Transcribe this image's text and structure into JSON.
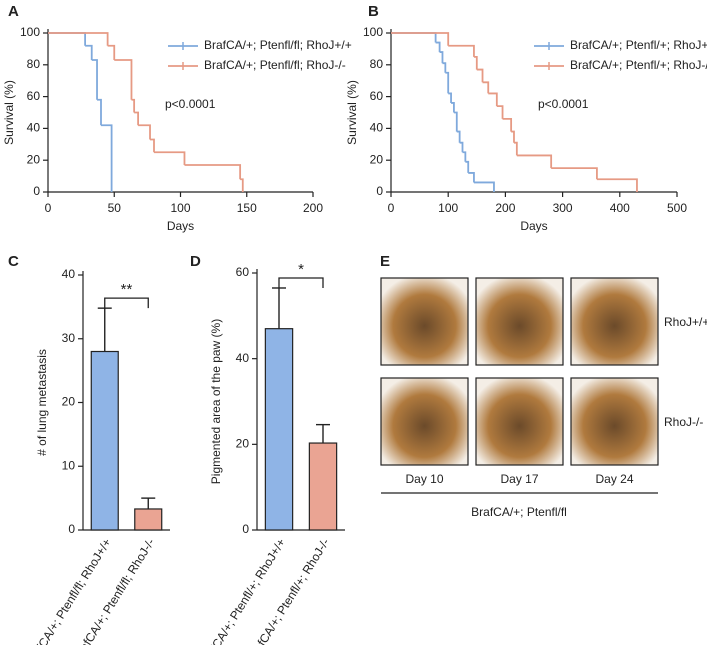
{
  "chart_data": [
    {
      "type": "line",
      "step": true,
      "panel": "A",
      "x_label": "Days",
      "y_label": "Survival (%)",
      "xlim": [
        0,
        200
      ],
      "xticks": [
        0,
        50,
        100,
        150,
        200
      ],
      "ylim": [
        0,
        100
      ],
      "yticks": [
        0,
        20,
        40,
        60,
        80,
        100
      ],
      "legend": "upper right",
      "annotation": "p<0.0001",
      "series": [
        {
          "name": "BrafCA/+; Ptenfl/fl; RhoJ+/+",
          "color": "#7fa9dc",
          "x": [
            0,
            28,
            33,
            37,
            40,
            48
          ],
          "values": [
            100,
            92,
            83,
            58,
            42,
            0
          ]
        },
        {
          "name": "BrafCA/+; Ptenfl/fl; RhoJ-/-",
          "color": "#e69a84",
          "x": [
            0,
            45,
            50,
            63,
            65,
            68,
            77,
            80,
            103,
            145,
            147
          ],
          "values": [
            100,
            92,
            83,
            58,
            50,
            42,
            33,
            25,
            17,
            8,
            0
          ]
        }
      ]
    },
    {
      "type": "line",
      "step": true,
      "panel": "B",
      "x_label": "Days",
      "y_label": "Survival (%)",
      "xlim": [
        0,
        500
      ],
      "xticks": [
        0,
        100,
        200,
        300,
        400,
        500
      ],
      "ylim": [
        0,
        100
      ],
      "yticks": [
        0,
        20,
        40,
        60,
        80,
        100
      ],
      "legend": "upper right",
      "annotation": "p<0.0001",
      "series": [
        {
          "name": "BrafCA/+; Ptenfl/+; RhoJ+/+",
          "color": "#7fa9dc",
          "x": [
            0,
            78,
            85,
            90,
            95,
            100,
            105,
            110,
            115,
            120,
            125,
            130,
            135,
            145,
            180
          ],
          "values": [
            100,
            94,
            88,
            81,
            75,
            62,
            56,
            50,
            38,
            31,
            25,
            19,
            12,
            6,
            0
          ]
        },
        {
          "name": "BrafCA/+; Ptenfl/+; RhoJ-/-",
          "color": "#e69a84",
          "x": [
            0,
            100,
            145,
            150,
            160,
            170,
            185,
            195,
            210,
            215,
            220,
            280,
            360,
            430
          ],
          "values": [
            100,
            92,
            85,
            77,
            69,
            62,
            54,
            46,
            38,
            31,
            23,
            15,
            8,
            0
          ]
        }
      ]
    },
    {
      "type": "bar",
      "panel": "C",
      "y_label": "# of lung metastasis",
      "ylim": [
        0,
        40
      ],
      "yticks": [
        0,
        10,
        20,
        30,
        40
      ],
      "categories": [
        "BrafCA/+; Ptenfl/fl; RhoJ+/+",
        "BrafCA/+; Ptenfl/fl; RhoJ-/-"
      ],
      "values": [
        28,
        3.3
      ],
      "errors": [
        6.8,
        1.7
      ],
      "colors": [
        "#8fb4e6",
        "#eaa493"
      ],
      "annotation": "**"
    },
    {
      "type": "bar",
      "panel": "D",
      "y_label": "Pigmented area of the paw (%)",
      "ylim": [
        0,
        60
      ],
      "yticks": [
        0,
        20,
        40,
        60
      ],
      "categories": [
        "BrafCA/+; Ptenfl/+; RhoJ+/+",
        "BrafCA/+; Ptenfl/+; RhoJ-/-"
      ],
      "values": [
        47,
        20.3
      ],
      "errors": [
        9.5,
        4.3
      ],
      "colors": [
        "#8fb4e6",
        "#eaa493"
      ],
      "annotation": "*"
    }
  ],
  "panel_e": {
    "panel": "E",
    "rows": [
      "RhoJ+/+",
      "RhoJ-/-"
    ],
    "columns": [
      "Day 10",
      "Day 17",
      "Day 24"
    ],
    "caption": "BrafCA/+; Ptenfl/fl"
  }
}
